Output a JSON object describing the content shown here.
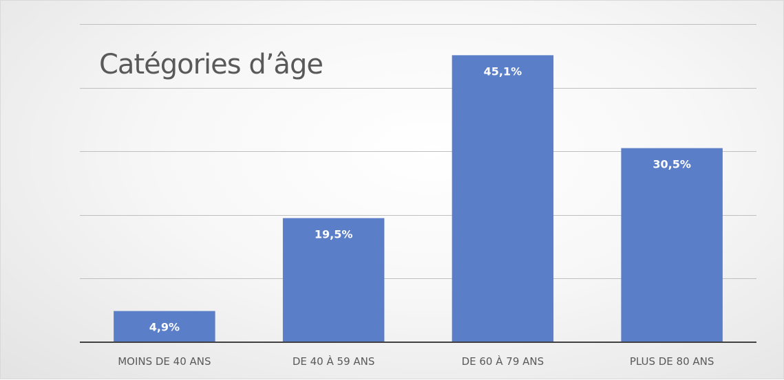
{
  "chart_data": {
    "type": "bar",
    "title": "Catégories d’âge",
    "categories": [
      "MOINS DE 40 ANS",
      "DE 40 À 59 ANS",
      "DE 60 À 79 ANS",
      "PLUS DE 80 ANS"
    ],
    "values": [
      4.9,
      19.5,
      45.1,
      30.5
    ],
    "data_labels": [
      "4,9%",
      "19,5%",
      "45,1%",
      "30,5%"
    ],
    "ylim": [
      0,
      50
    ],
    "grid": true,
    "legend": "none",
    "bar_color": "#5b7ec9"
  }
}
